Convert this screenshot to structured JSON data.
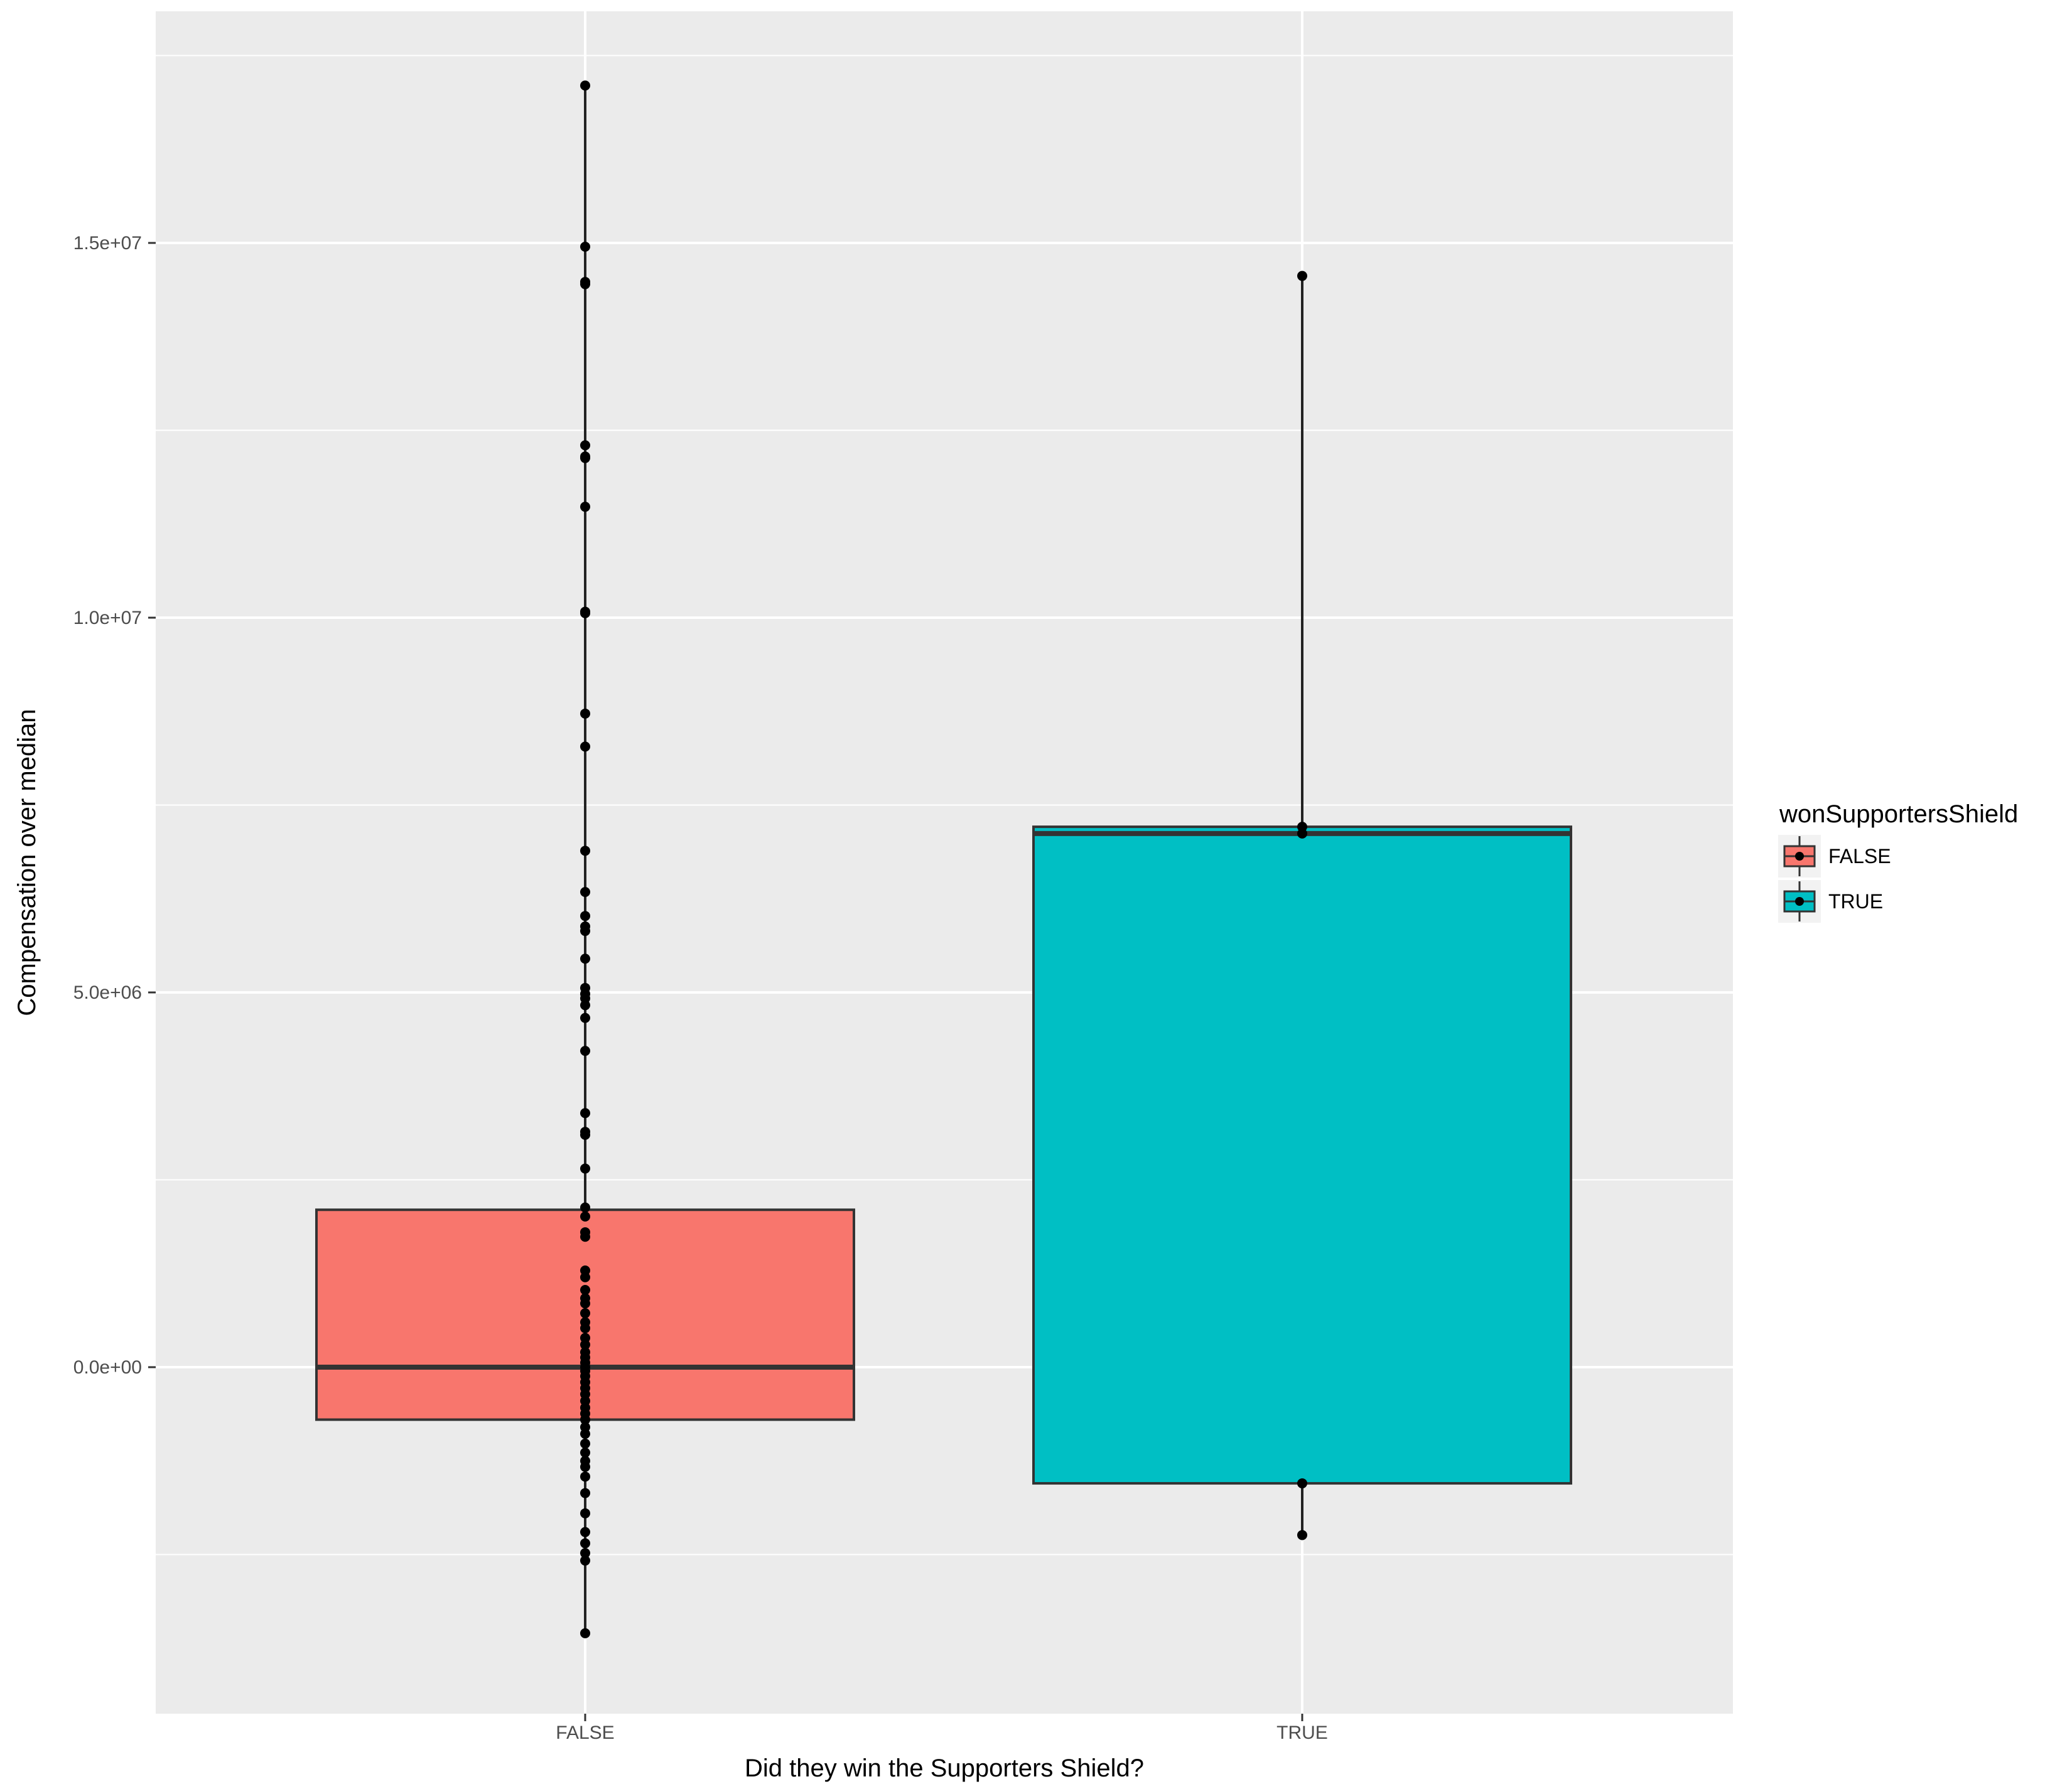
{
  "chart_data": {
    "type": "box",
    "xlabel": "Did they win the Supporters Shield?",
    "ylabel": "Compensation over median",
    "categories": [
      "FALSE",
      "TRUE"
    ],
    "ylim": [
      -4400000,
      18000000
    ],
    "yticks": [
      0,
      5000000,
      10000000,
      15000000
    ],
    "ytick_labels": [
      "0.0e+00",
      "5.0e+06",
      "1.0e+07",
      "1.5e+07"
    ],
    "grid": true,
    "legend": {
      "title": "wonSupportersShield",
      "position": "right",
      "entries": [
        {
          "label": "FALSE",
          "color": "#F8766D"
        },
        {
          "label": "TRUE",
          "color": "#00BFC4"
        }
      ]
    },
    "boxes": [
      {
        "category": "FALSE",
        "color": "#F8766D",
        "whisker_low": -3550000,
        "q1": -700000,
        "median": 0,
        "q3": 2100000,
        "whisker_high": 17100000,
        "points": [
          17100000,
          14950000,
          14480000,
          14450000,
          12300000,
          12150000,
          12130000,
          11480000,
          10080000,
          10060000,
          8720000,
          8280000,
          6890000,
          6340000,
          6020000,
          5880000,
          5820000,
          5450000,
          5060000,
          4980000,
          4920000,
          4830000,
          4660000,
          4220000,
          3390000,
          3140000,
          3100000,
          2650000,
          2130000,
          2010000,
          1800000,
          1740000,
          1290000,
          1200000,
          1030000,
          920000,
          850000,
          720000,
          600000,
          520000,
          390000,
          300000,
          200000,
          130000,
          60000,
          0,
          -50000,
          -120000,
          -200000,
          -280000,
          -360000,
          -450000,
          -540000,
          -620000,
          -700000,
          -800000,
          -890000,
          -1020000,
          -1140000,
          -1250000,
          -1330000,
          -1460000,
          -1680000,
          -1950000,
          -2200000,
          -2350000,
          -2480000,
          -2580000,
          -3550000
        ]
      },
      {
        "category": "TRUE",
        "color": "#00BFC4",
        "whisker_low": -2240000,
        "q1": -1550000,
        "median": 7120000,
        "q3": 7210000,
        "whisker_high": 14560000,
        "points": [
          14560000,
          7210000,
          7120000,
          -1550000,
          -2240000
        ]
      }
    ]
  }
}
